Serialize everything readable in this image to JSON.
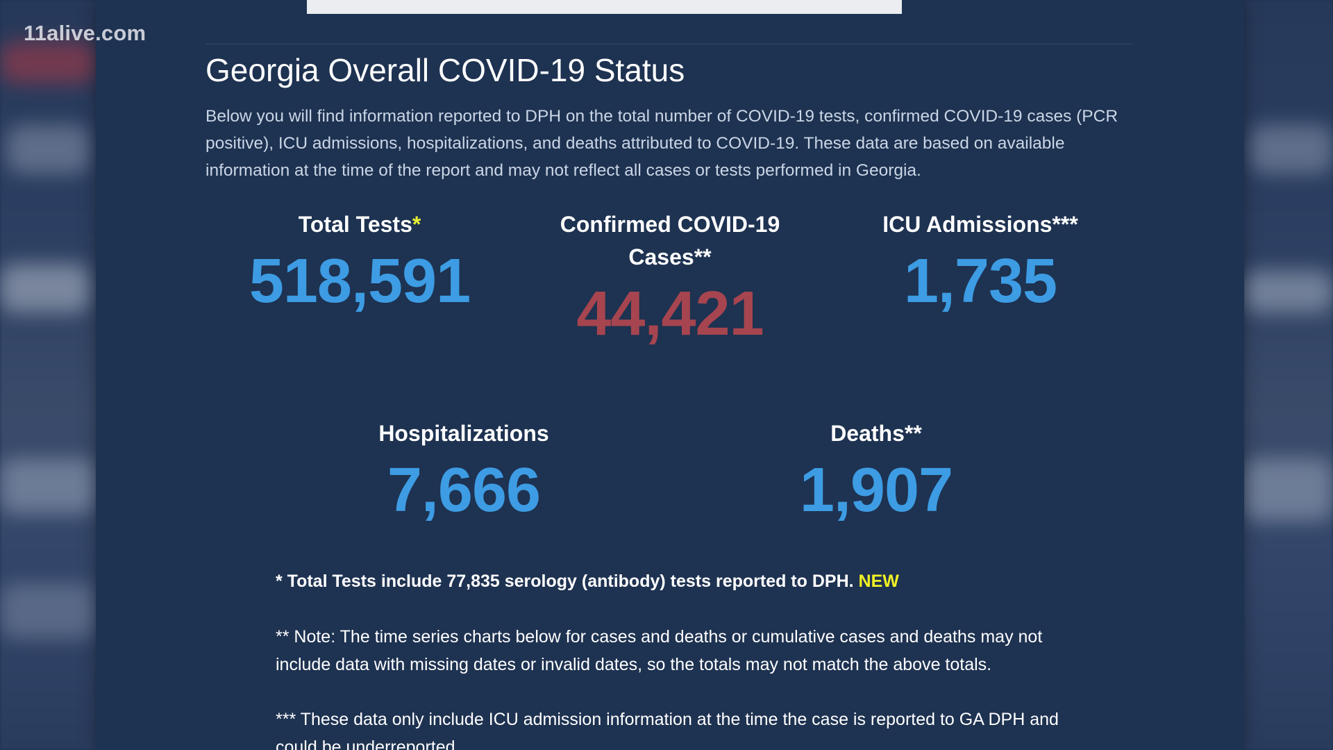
{
  "watermark": "11alive.com",
  "page": {
    "title": "Georgia Overall COVID-19 Status",
    "intro": "Below you will find information reported to DPH on the total number of COVID-19 tests, confirmed COVID-19 cases (PCR positive), ICU admissions, hospitalizations, and deaths attributed to COVID-19. These data are based on available information at the time of the report and may not reflect all cases or tests performed in Georgia."
  },
  "stats": {
    "total_tests": {
      "label": "Total Tests",
      "mark": "*",
      "value": "518,591"
    },
    "confirmed_cases": {
      "label_line1": "Confirmed COVID-19",
      "label_line2": "Cases",
      "mark": "**",
      "value": "44,421"
    },
    "icu_admissions": {
      "label": "ICU Admissions",
      "mark": "***",
      "value": "1,735"
    },
    "hospitalizations": {
      "label": "Hospitalizations",
      "value": "7,666"
    },
    "deaths": {
      "label": "Deaths",
      "mark": "**",
      "value": "1,907"
    }
  },
  "notes": {
    "note1": "* Total Tests include 77,835 serology (antibody) tests reported to DPH.",
    "note1_new": "NEW",
    "note2": "** Note: The time series charts below for cases and deaths or cumulative cases and deaths may not include data with missing dates or invalid dates, so the totals may not match the above totals.",
    "note3": "*** These data only include ICU admission information at the time the case is reported to GA DPH and could be underreported."
  },
  "colors": {
    "background": "#1e3251",
    "stat_blue": "#3d9ce3",
    "stat_red": "#a6454f",
    "new_yellow": "#f0f225"
  }
}
